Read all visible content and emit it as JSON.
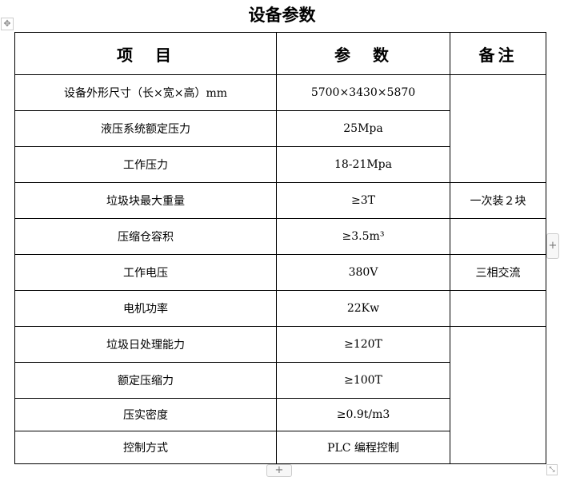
{
  "title": "设备参数",
  "headers": [
    "项　目",
    "参　数",
    "备注"
  ],
  "rows": [
    {
      "item": "设备外形尺寸（长×宽×高）mm",
      "param": "5700×3430×5870"
    },
    {
      "item": "液压系统额定压力",
      "param": "25Mpa"
    },
    {
      "item": "工作压力",
      "param": "18-21Mpa"
    },
    {
      "item": "垃圾块最大重量",
      "param": "≥3T",
      "note": "一次装２块"
    },
    {
      "item": "压缩仓容积",
      "param": "≥3.5m³",
      "note": ""
    },
    {
      "item": "工作电压",
      "param": "380V",
      "note": "三相交流"
    },
    {
      "item": "电机功率",
      "param": "22Kw",
      "note": ""
    },
    {
      "item": "垃圾日处理能力",
      "param": "≥120T"
    },
    {
      "item": "额定压缩力",
      "param": "≥100T"
    },
    {
      "item": "压实密度",
      "param": "≥0.9t/m3"
    },
    {
      "item": "控制方式",
      "param": "PLC 编程控制"
    }
  ],
  "controls": {
    "move": "✥",
    "add": "+",
    "resize": "⤡"
  }
}
